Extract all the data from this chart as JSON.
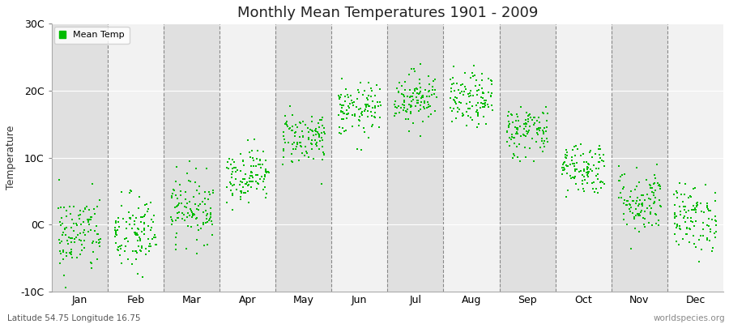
{
  "title": "Monthly Mean Temperatures 1901 - 2009",
  "ylabel": "Temperature",
  "xlabel_labels": [
    "Jan",
    "Feb",
    "Mar",
    "Apr",
    "May",
    "Jun",
    "Jul",
    "Aug",
    "Sep",
    "Oct",
    "Nov",
    "Dec"
  ],
  "legend_label": "Mean Temp",
  "dot_color": "#00BB00",
  "background_color": "#ffffff",
  "plot_bg_color_light": "#f2f2f2",
  "plot_bg_color_dark": "#e0e0e0",
  "ylim": [
    -10,
    30
  ],
  "yticks": [
    -10,
    0,
    10,
    20,
    30
  ],
  "ytick_labels": [
    "-10C",
    "0C",
    "10C",
    "20C",
    "30C"
  ],
  "subtitle": "Latitude 54.75 Longitude 16.75",
  "watermark": "worldspecies.org",
  "n_years": 109,
  "monthly_means": [
    -1.5,
    -1.5,
    2.5,
    7.5,
    13.0,
    17.0,
    19.0,
    18.5,
    14.0,
    8.5,
    3.5,
    1.0
  ],
  "monthly_stds": [
    3.0,
    3.0,
    2.5,
    2.0,
    2.0,
    2.0,
    2.0,
    2.0,
    2.0,
    2.0,
    2.5,
    2.5
  ]
}
